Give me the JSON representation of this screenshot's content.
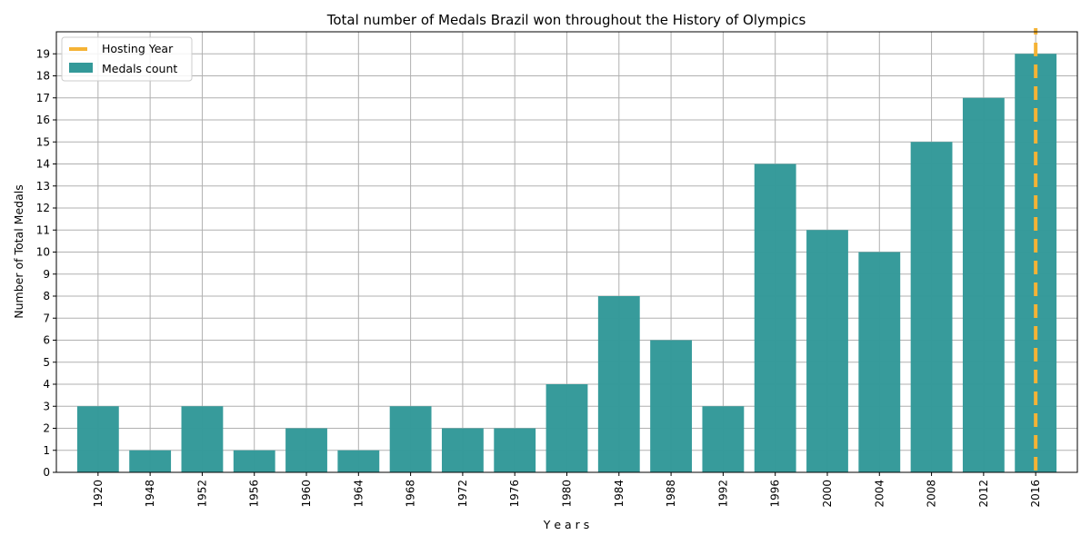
{
  "chart_data": {
    "type": "bar",
    "title": "Total number of Medals Brazil won throughout the History of Olympics",
    "xlabel": "Y e a r s",
    "ylabel": "Number of Total Medals",
    "categories": [
      "1920",
      "1948",
      "1952",
      "1956",
      "1960",
      "1964",
      "1968",
      "1972",
      "1976",
      "1980",
      "1984",
      "1988",
      "1992",
      "1996",
      "2000",
      "2004",
      "2008",
      "2012",
      "2016"
    ],
    "series": [
      {
        "name": "Medals count",
        "color": "#339999",
        "values": [
          3,
          1,
          3,
          1,
          2,
          1,
          3,
          2,
          2,
          4,
          8,
          6,
          3,
          14,
          11,
          10,
          15,
          17,
          19
        ]
      }
    ],
    "hosting_line": {
      "name": "Hosting Year",
      "year": "2016",
      "color": "#f5b335",
      "style": "dashed"
    },
    "ylim": [
      0,
      20
    ],
    "yticks": [
      0,
      1,
      2,
      3,
      4,
      5,
      6,
      7,
      8,
      9,
      10,
      11,
      12,
      13,
      14,
      15,
      16,
      17,
      18,
      19
    ],
    "grid": true,
    "legend": "top-left"
  }
}
